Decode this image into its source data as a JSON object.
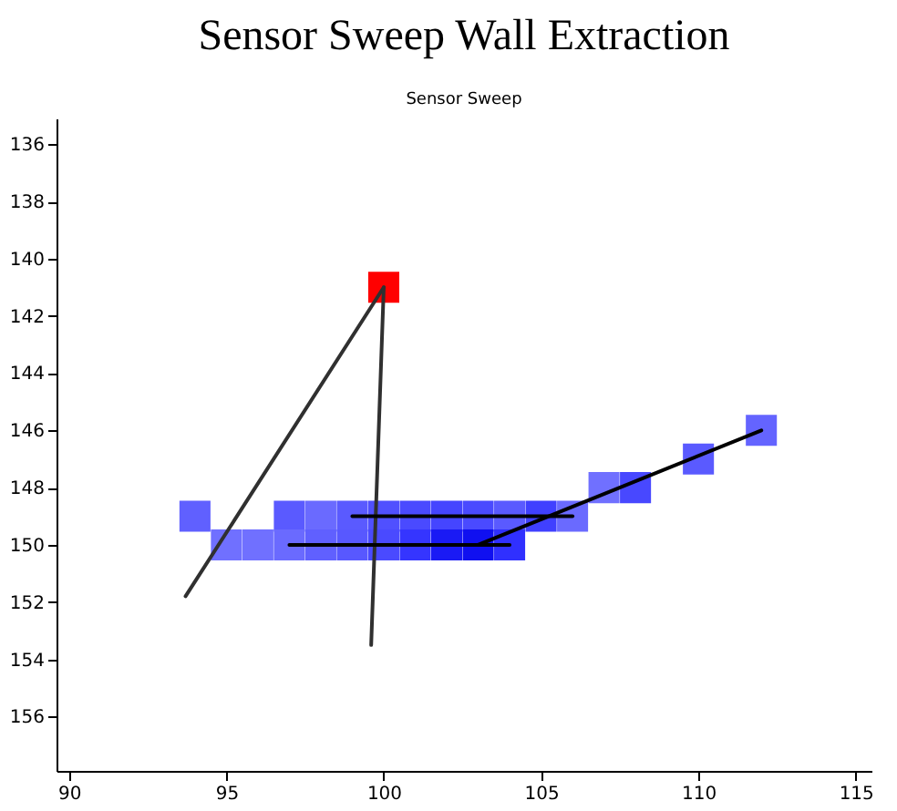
{
  "chart_data": {
    "type": "scatter",
    "title": "Sensor Sweep Wall Extraction",
    "subtitle": "Sensor Sweep",
    "xlim": [
      89.6,
      115.5
    ],
    "xticks": [
      90,
      95,
      100,
      105,
      110,
      115
    ],
    "ylim": [
      157.9,
      135.1
    ],
    "yticks": [
      136,
      138,
      140,
      142,
      144,
      146,
      148,
      150,
      152,
      154,
      156
    ],
    "grid": false,
    "marker": "square",
    "line_style": "solid",
    "series": [
      {
        "x": [
          94,
          97,
          98,
          99,
          100,
          101,
          102,
          103,
          104,
          105,
          106,
          95,
          96,
          97,
          98,
          99,
          100,
          101,
          102,
          103,
          104,
          107,
          108,
          110,
          112
        ],
        "values": [
          149,
          149,
          149,
          149,
          149,
          149,
          149,
          149,
          149,
          149,
          149,
          150,
          150,
          150,
          150,
          150,
          150,
          150,
          150,
          150,
          150,
          148,
          148,
          147,
          146
        ],
        "colors": [
          "#6060ff",
          "#5a5aff",
          "#6a6aff",
          "#5a5aff",
          "#5050ff",
          "#4a4aff",
          "#4545ff",
          "#4a4aff",
          "#5a5aff",
          "#4040ff",
          "#6a6aff",
          "#7070ff",
          "#7070ff",
          "#6a6aff",
          "#6060ff",
          "#5858ff",
          "#4a4aff",
          "#3535ff",
          "#1a1af5",
          "#1010f0",
          "#3030ff",
          "#7070ff",
          "#4848ff",
          "#5a5aff",
          "#6464ff"
        ]
      },
      {
        "x": [
          100
        ],
        "values": [
          141
        ],
        "color": "#ff0000"
      },
      {
        "type": "line",
        "marker": "none",
        "x": [
          100,
          93.7
        ],
        "values": [
          141,
          151.8
        ],
        "color": "#303030"
      },
      {
        "type": "line",
        "marker": "none",
        "x": [
          100,
          99.6
        ],
        "values": [
          141,
          153.5
        ],
        "color": "#303030"
      },
      {
        "type": "line",
        "marker": "none",
        "x": [
          99,
          106
        ],
        "values": [
          149,
          149
        ],
        "color": "#000000"
      },
      {
        "type": "line",
        "marker": "none",
        "x": [
          97,
          104
        ],
        "values": [
          150,
          150
        ],
        "color": "#000000"
      },
      {
        "type": "line",
        "marker": "none",
        "x": [
          103,
          112
        ],
        "values": [
          150,
          146
        ],
        "color": "#000000"
      }
    ]
  }
}
